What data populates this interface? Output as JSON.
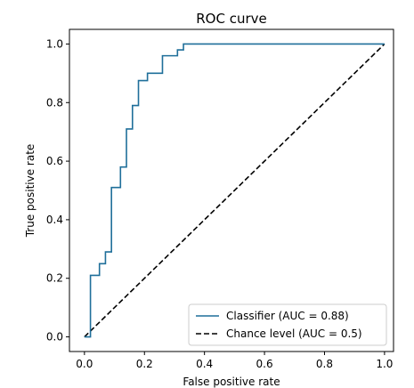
{
  "chart_data": {
    "type": "line",
    "title": "ROC curve",
    "xlabel": "False positive rate",
    "ylabel": "True positive rate",
    "xlim": [
      -0.05,
      1.03
    ],
    "ylim": [
      -0.05,
      1.05
    ],
    "x_ticks": [
      "0.0",
      "0.2",
      "0.4",
      "0.6",
      "0.8",
      "1.0"
    ],
    "y_ticks": [
      "0.0",
      "0.2",
      "0.4",
      "0.6",
      "0.8",
      "1.0"
    ],
    "grid": false,
    "legend": "lower-right",
    "series": [
      {
        "name": "Classifier (AUC = 0.88)",
        "color": "#1f6f9a",
        "style": "solid",
        "x": [
          0.0,
          0.0,
          0.02,
          0.02,
          0.05,
          0.05,
          0.07,
          0.07,
          0.09,
          0.09,
          0.12,
          0.12,
          0.14,
          0.14,
          0.16,
          0.16,
          0.18,
          0.18,
          0.21,
          0.21,
          0.26,
          0.26,
          0.31,
          0.31,
          0.33,
          0.33,
          1.0
        ],
        "y": [
          0.0,
          0.0,
          0.0,
          0.21,
          0.21,
          0.25,
          0.25,
          0.29,
          0.29,
          0.51,
          0.51,
          0.58,
          0.58,
          0.71,
          0.71,
          0.79,
          0.79,
          0.875,
          0.875,
          0.9,
          0.9,
          0.96,
          0.96,
          0.98,
          0.98,
          1.0,
          1.0
        ]
      },
      {
        "name": "Chance level (AUC = 0.5)",
        "color": "#000000",
        "style": "dashed",
        "x": [
          0.0,
          1.0
        ],
        "y": [
          0.0,
          1.0
        ]
      }
    ]
  }
}
